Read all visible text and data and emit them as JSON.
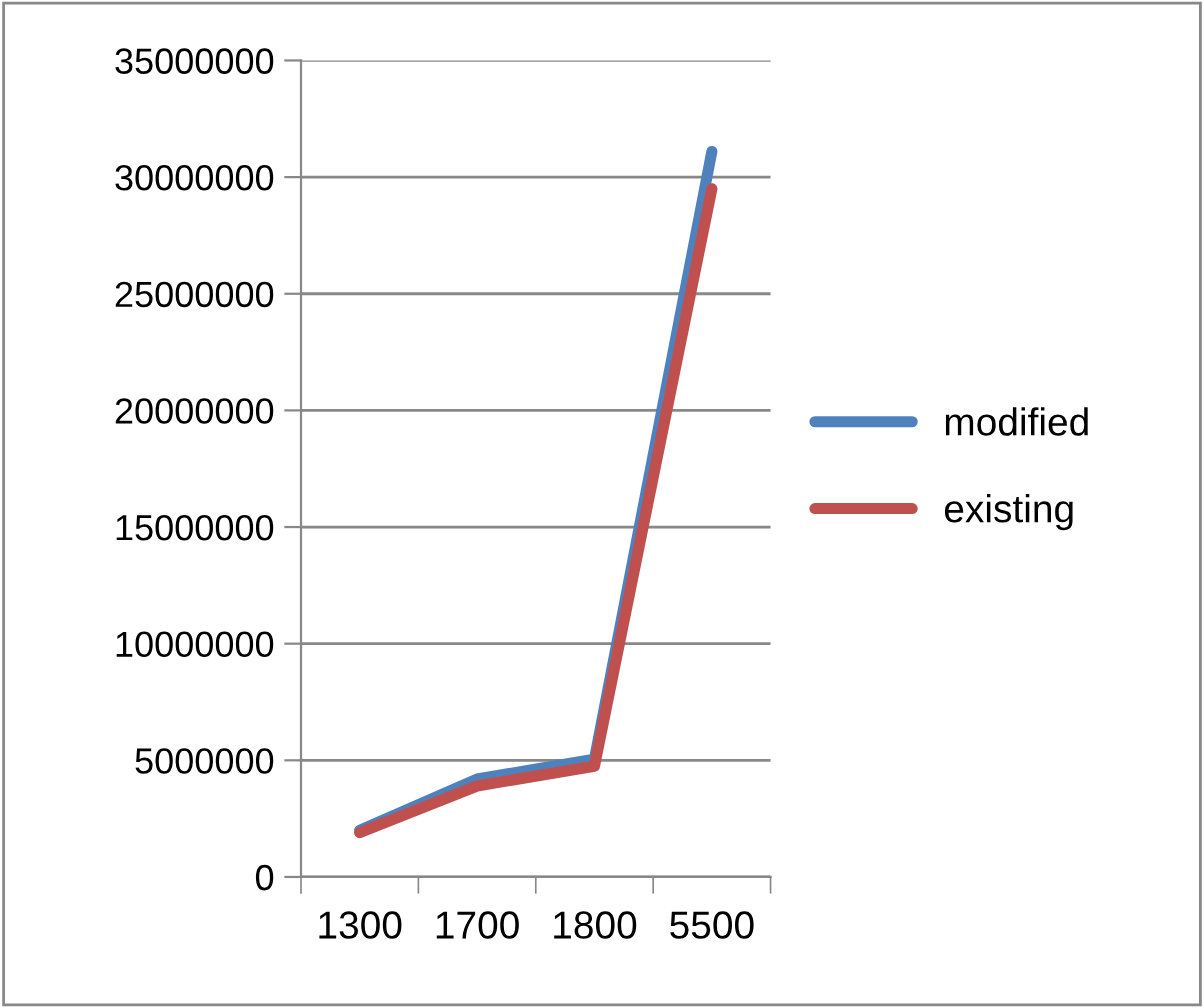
{
  "chart_data": {
    "type": "line",
    "categories": [
      "1300",
      "1700",
      "1800",
      "5500"
    ],
    "series": [
      {
        "name": "modified",
        "color": "#4f81bd",
        "values": [
          2000000,
          4200000,
          5050000,
          31100000
        ]
      },
      {
        "name": "existing",
        "color": "#c0504d",
        "values": [
          1900000,
          3900000,
          4750000,
          29500000
        ]
      }
    ],
    "ylim": [
      0,
      35000000
    ],
    "yticks": [
      0,
      5000000,
      10000000,
      15000000,
      20000000,
      25000000,
      30000000,
      35000000
    ],
    "grid": "y",
    "legend": "right",
    "marker": "none",
    "line_style": "solid"
  }
}
